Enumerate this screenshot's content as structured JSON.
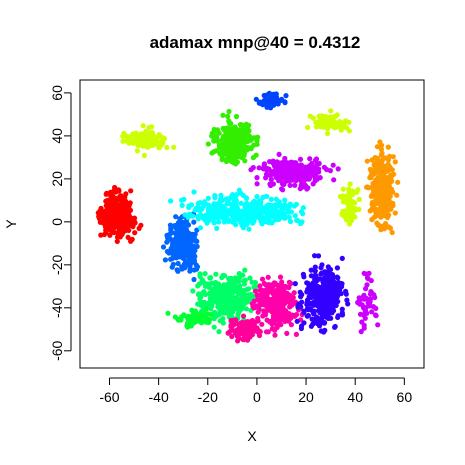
{
  "chart_data": {
    "type": "scatter",
    "title": "adamax mnp@40 = 0.4312",
    "xlabel": "X",
    "ylabel": "Y",
    "xlim": [
      -72,
      68
    ],
    "ylim": [
      -68,
      66
    ],
    "xticks": [
      -60,
      -40,
      -20,
      0,
      20,
      40,
      60
    ],
    "yticks": [
      -60,
      -40,
      -20,
      0,
      20,
      40,
      60
    ],
    "grid": false,
    "legend": "none",
    "clusters": [
      {
        "color": "#ff0000",
        "center": [
          -57,
          3
        ],
        "spread": [
          6,
          8
        ],
        "count": 320
      },
      {
        "color": "#0066ff",
        "center": [
          -30,
          -10
        ],
        "spread": [
          5,
          9
        ],
        "count": 260
      },
      {
        "color": "#ccff00",
        "center": [
          -45,
          38
        ],
        "spread": [
          6,
          4
        ],
        "count": 140
      },
      {
        "color": "#33ee00",
        "center": [
          -9,
          37
        ],
        "spread": [
          7,
          8
        ],
        "count": 300
      },
      {
        "color": "#0044ff",
        "center": [
          6,
          56
        ],
        "spread": [
          4,
          3
        ],
        "count": 60
      },
      {
        "color": "#ccff00",
        "center": [
          30,
          46
        ],
        "spread": [
          6,
          3
        ],
        "count": 80
      },
      {
        "color": "#cc00ff",
        "center": [
          15,
          23
        ],
        "spread": [
          12,
          5
        ],
        "count": 260
      },
      {
        "color": "#00ffff",
        "center": [
          -5,
          5
        ],
        "spread": [
          18,
          6
        ],
        "count": 350
      },
      {
        "color": "#ff9900",
        "center": [
          51,
          15
        ],
        "spread": [
          4,
          14
        ],
        "count": 280
      },
      {
        "color": "#ccff00",
        "center": [
          38,
          8
        ],
        "spread": [
          3,
          8
        ],
        "count": 60
      },
      {
        "color": "#00ff66",
        "center": [
          -12,
          -35
        ],
        "spread": [
          10,
          10
        ],
        "count": 320
      },
      {
        "color": "#ff00aa",
        "center": [
          8,
          -38
        ],
        "spread": [
          7,
          10
        ],
        "count": 260
      },
      {
        "color": "#3300ff",
        "center": [
          27,
          -35
        ],
        "spread": [
          7,
          12
        ],
        "count": 300
      },
      {
        "color": "#ff0099",
        "center": [
          -5,
          -50
        ],
        "spread": [
          5,
          4
        ],
        "count": 90
      },
      {
        "color": "#00ff33",
        "center": [
          -25,
          -45
        ],
        "spread": [
          6,
          4
        ],
        "count": 70
      },
      {
        "color": "#cc00ff",
        "center": [
          45,
          -35
        ],
        "spread": [
          3,
          10
        ],
        "count": 50
      }
    ]
  }
}
